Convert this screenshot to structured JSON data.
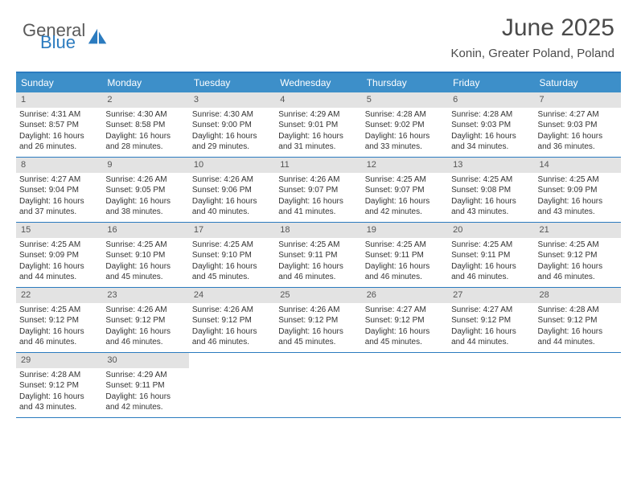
{
  "logo": {
    "text1": "General",
    "text2": "Blue",
    "color_gray": "#5a5a5a",
    "color_blue": "#2b7bbf"
  },
  "title": "June 2025",
  "subtitle": "Konin, Greater Poland, Poland",
  "colors": {
    "header_bg": "#3d8fc9",
    "border_blue": "#2b7bbf",
    "daynum_bg": "#e3e3e3",
    "text": "#333333",
    "title_color": "#4a4a4a"
  },
  "fonts": {
    "title": 30,
    "subtitle": 15,
    "dow": 12,
    "daynum": 11,
    "body": 10
  },
  "days_of_week": [
    "Sunday",
    "Monday",
    "Tuesday",
    "Wednesday",
    "Thursday",
    "Friday",
    "Saturday"
  ],
  "weeks": [
    [
      {
        "n": "1",
        "sr": "4:31 AM",
        "ss": "8:57 PM",
        "dl": "16 hours and 26 minutes."
      },
      {
        "n": "2",
        "sr": "4:30 AM",
        "ss": "8:58 PM",
        "dl": "16 hours and 28 minutes."
      },
      {
        "n": "3",
        "sr": "4:30 AM",
        "ss": "9:00 PM",
        "dl": "16 hours and 29 minutes."
      },
      {
        "n": "4",
        "sr": "4:29 AM",
        "ss": "9:01 PM",
        "dl": "16 hours and 31 minutes."
      },
      {
        "n": "5",
        "sr": "4:28 AM",
        "ss": "9:02 PM",
        "dl": "16 hours and 33 minutes."
      },
      {
        "n": "6",
        "sr": "4:28 AM",
        "ss": "9:03 PM",
        "dl": "16 hours and 34 minutes."
      },
      {
        "n": "7",
        "sr": "4:27 AM",
        "ss": "9:03 PM",
        "dl": "16 hours and 36 minutes."
      }
    ],
    [
      {
        "n": "8",
        "sr": "4:27 AM",
        "ss": "9:04 PM",
        "dl": "16 hours and 37 minutes."
      },
      {
        "n": "9",
        "sr": "4:26 AM",
        "ss": "9:05 PM",
        "dl": "16 hours and 38 minutes."
      },
      {
        "n": "10",
        "sr": "4:26 AM",
        "ss": "9:06 PM",
        "dl": "16 hours and 40 minutes."
      },
      {
        "n": "11",
        "sr": "4:26 AM",
        "ss": "9:07 PM",
        "dl": "16 hours and 41 minutes."
      },
      {
        "n": "12",
        "sr": "4:25 AM",
        "ss": "9:07 PM",
        "dl": "16 hours and 42 minutes."
      },
      {
        "n": "13",
        "sr": "4:25 AM",
        "ss": "9:08 PM",
        "dl": "16 hours and 43 minutes."
      },
      {
        "n": "14",
        "sr": "4:25 AM",
        "ss": "9:09 PM",
        "dl": "16 hours and 43 minutes."
      }
    ],
    [
      {
        "n": "15",
        "sr": "4:25 AM",
        "ss": "9:09 PM",
        "dl": "16 hours and 44 minutes."
      },
      {
        "n": "16",
        "sr": "4:25 AM",
        "ss": "9:10 PM",
        "dl": "16 hours and 45 minutes."
      },
      {
        "n": "17",
        "sr": "4:25 AM",
        "ss": "9:10 PM",
        "dl": "16 hours and 45 minutes."
      },
      {
        "n": "18",
        "sr": "4:25 AM",
        "ss": "9:11 PM",
        "dl": "16 hours and 46 minutes."
      },
      {
        "n": "19",
        "sr": "4:25 AM",
        "ss": "9:11 PM",
        "dl": "16 hours and 46 minutes."
      },
      {
        "n": "20",
        "sr": "4:25 AM",
        "ss": "9:11 PM",
        "dl": "16 hours and 46 minutes."
      },
      {
        "n": "21",
        "sr": "4:25 AM",
        "ss": "9:12 PM",
        "dl": "16 hours and 46 minutes."
      }
    ],
    [
      {
        "n": "22",
        "sr": "4:25 AM",
        "ss": "9:12 PM",
        "dl": "16 hours and 46 minutes."
      },
      {
        "n": "23",
        "sr": "4:26 AM",
        "ss": "9:12 PM",
        "dl": "16 hours and 46 minutes."
      },
      {
        "n": "24",
        "sr": "4:26 AM",
        "ss": "9:12 PM",
        "dl": "16 hours and 46 minutes."
      },
      {
        "n": "25",
        "sr": "4:26 AM",
        "ss": "9:12 PM",
        "dl": "16 hours and 45 minutes."
      },
      {
        "n": "26",
        "sr": "4:27 AM",
        "ss": "9:12 PM",
        "dl": "16 hours and 45 minutes."
      },
      {
        "n": "27",
        "sr": "4:27 AM",
        "ss": "9:12 PM",
        "dl": "16 hours and 44 minutes."
      },
      {
        "n": "28",
        "sr": "4:28 AM",
        "ss": "9:12 PM",
        "dl": "16 hours and 44 minutes."
      }
    ],
    [
      {
        "n": "29",
        "sr": "4:28 AM",
        "ss": "9:12 PM",
        "dl": "16 hours and 43 minutes."
      },
      {
        "n": "30",
        "sr": "4:29 AM",
        "ss": "9:11 PM",
        "dl": "16 hours and 42 minutes."
      },
      null,
      null,
      null,
      null,
      null
    ]
  ],
  "labels": {
    "sunrise": "Sunrise:",
    "sunset": "Sunset:",
    "daylight": "Daylight:"
  }
}
